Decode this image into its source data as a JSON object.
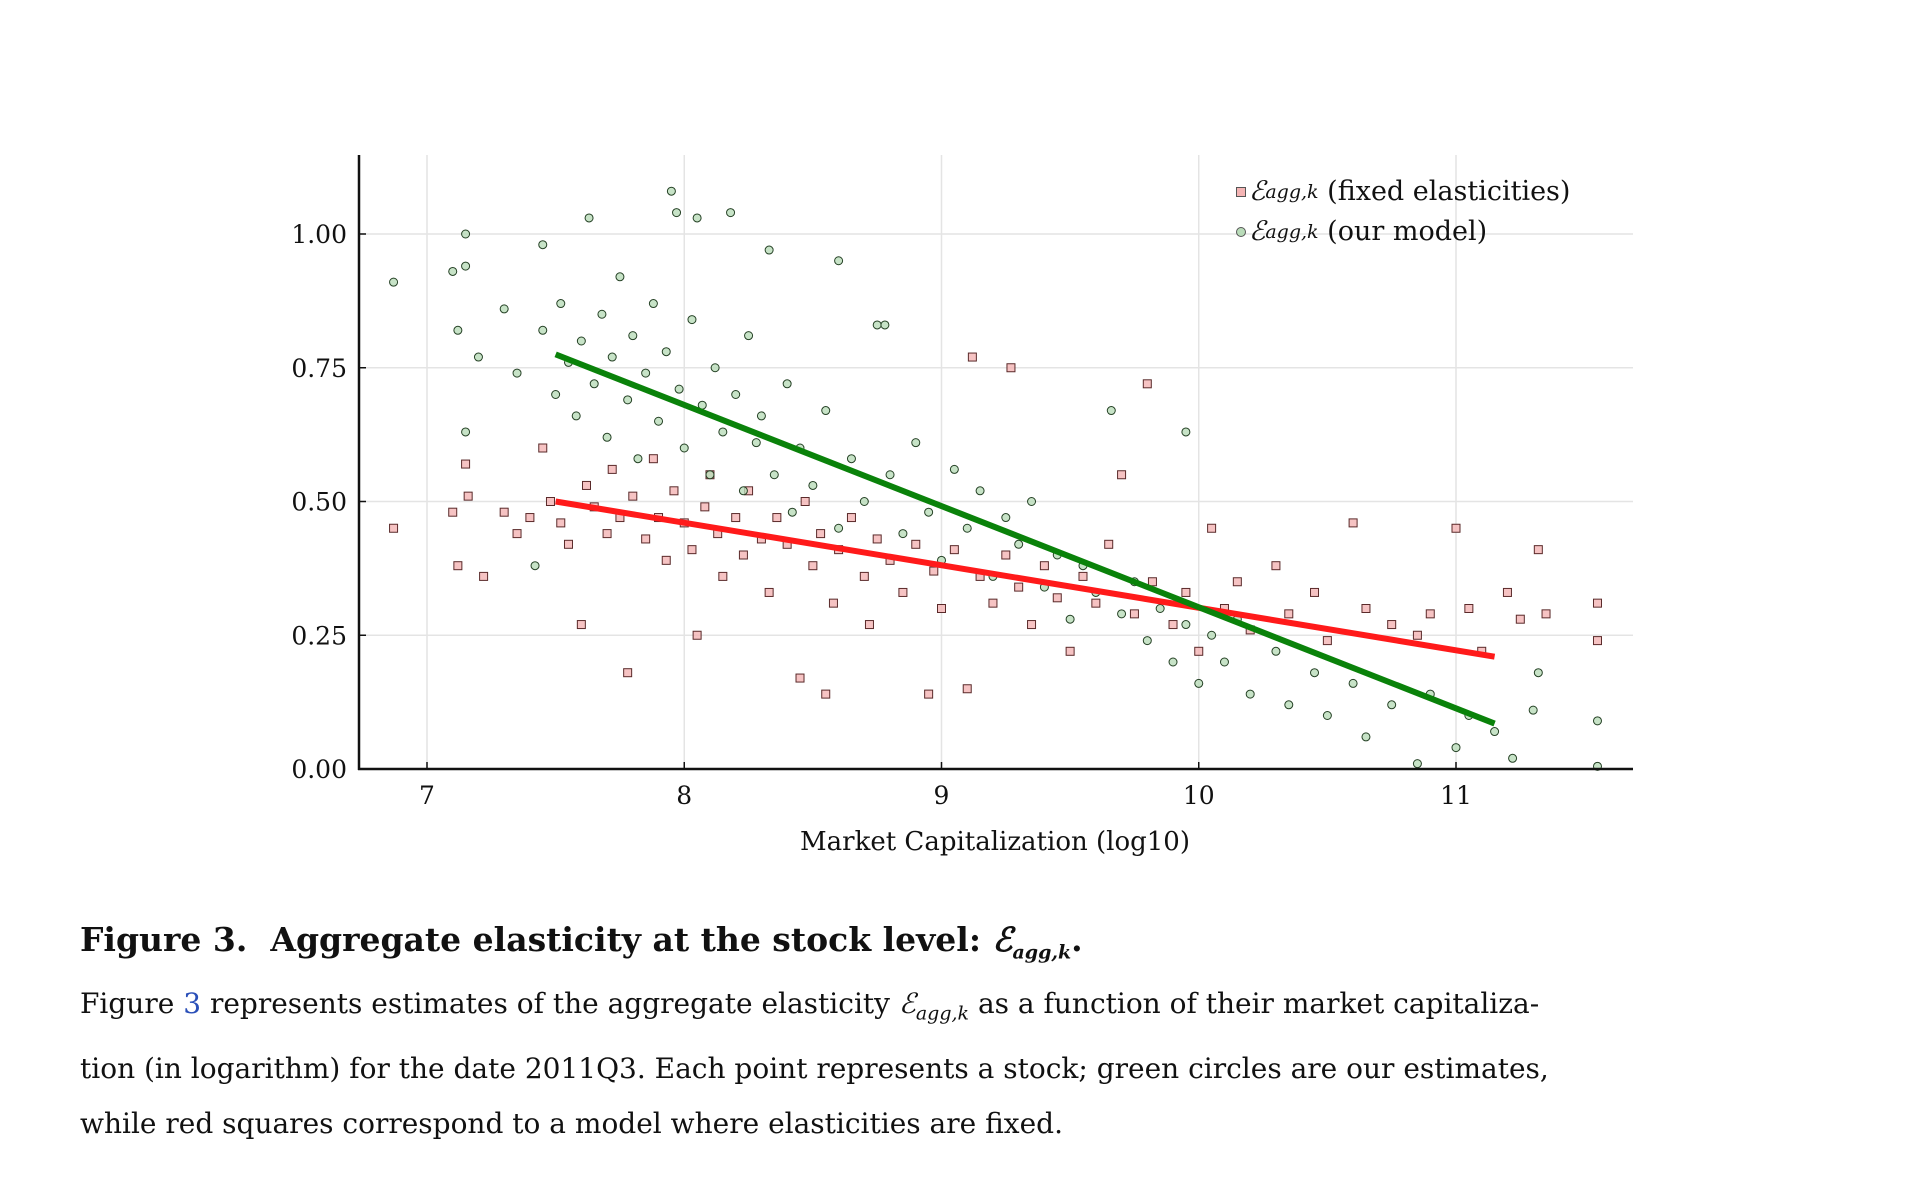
{
  "chart_data": {
    "type": "scatter",
    "xlabel": "Market Capitalization (log10)",
    "ylabel": "",
    "xlim": [
      6.75,
      11.7
    ],
    "ylim": [
      0.0,
      1.15
    ],
    "xticks": [
      "7",
      "8",
      "9",
      "10",
      "11"
    ],
    "yticks": [
      "0.00",
      "0.25",
      "0.50",
      "0.75",
      "1.00"
    ],
    "grid": true,
    "legend_position": "top-right",
    "series": [
      {
        "name": "fixed elasticities",
        "legend_symbol": "ℰ",
        "legend_sub": "agg,k",
        "legend_text": "(fixed elasticities)",
        "marker": "square",
        "color": "#f4b4b4",
        "fit_line": {
          "color": "#ff1a1a",
          "x": [
            7.5,
            11.15
          ],
          "y": [
            0.5,
            0.21
          ]
        },
        "points": [
          [
            6.87,
            0.45
          ],
          [
            7.1,
            0.48
          ],
          [
            7.15,
            0.57
          ],
          [
            7.22,
            0.36
          ],
          [
            7.12,
            0.38
          ],
          [
            7.16,
            0.51
          ],
          [
            7.3,
            0.48
          ],
          [
            7.35,
            0.44
          ],
          [
            7.4,
            0.47
          ],
          [
            7.45,
            0.6
          ],
          [
            7.48,
            0.5
          ],
          [
            7.52,
            0.46
          ],
          [
            7.55,
            0.42
          ],
          [
            7.6,
            0.27
          ],
          [
            7.62,
            0.53
          ],
          [
            7.65,
            0.49
          ],
          [
            7.7,
            0.44
          ],
          [
            7.72,
            0.56
          ],
          [
            7.75,
            0.47
          ],
          [
            7.78,
            0.18
          ],
          [
            7.8,
            0.51
          ],
          [
            7.85,
            0.43
          ],
          [
            7.88,
            0.58
          ],
          [
            7.9,
            0.47
          ],
          [
            7.93,
            0.39
          ],
          [
            7.96,
            0.52
          ],
          [
            8.0,
            0.46
          ],
          [
            8.03,
            0.41
          ],
          [
            8.05,
            0.25
          ],
          [
            8.08,
            0.49
          ],
          [
            8.1,
            0.55
          ],
          [
            8.13,
            0.44
          ],
          [
            8.15,
            0.36
          ],
          [
            8.2,
            0.47
          ],
          [
            8.23,
            0.4
          ],
          [
            8.25,
            0.52
          ],
          [
            8.3,
            0.43
          ],
          [
            8.33,
            0.33
          ],
          [
            8.36,
            0.47
          ],
          [
            8.4,
            0.42
          ],
          [
            8.45,
            0.17
          ],
          [
            8.47,
            0.5
          ],
          [
            8.5,
            0.38
          ],
          [
            8.53,
            0.44
          ],
          [
            8.55,
            0.14
          ],
          [
            8.58,
            0.31
          ],
          [
            8.6,
            0.41
          ],
          [
            8.65,
            0.47
          ],
          [
            8.7,
            0.36
          ],
          [
            8.72,
            0.27
          ],
          [
            8.75,
            0.43
          ],
          [
            8.8,
            0.39
          ],
          [
            8.85,
            0.33
          ],
          [
            8.9,
            0.42
          ],
          [
            8.95,
            0.14
          ],
          [
            8.97,
            0.37
          ],
          [
            9.0,
            0.3
          ],
          [
            9.05,
            0.41
          ],
          [
            9.1,
            0.15
          ],
          [
            9.12,
            0.77
          ],
          [
            9.15,
            0.36
          ],
          [
            9.2,
            0.31
          ],
          [
            9.25,
            0.4
          ],
          [
            9.27,
            0.75
          ],
          [
            9.3,
            0.34
          ],
          [
            9.35,
            0.27
          ],
          [
            9.4,
            0.38
          ],
          [
            9.45,
            0.32
          ],
          [
            9.5,
            0.22
          ],
          [
            9.55,
            0.36
          ],
          [
            9.6,
            0.31
          ],
          [
            9.65,
            0.42
          ],
          [
            9.7,
            0.55
          ],
          [
            9.75,
            0.29
          ],
          [
            9.8,
            0.72
          ],
          [
            9.82,
            0.35
          ],
          [
            9.9,
            0.27
          ],
          [
            9.95,
            0.33
          ],
          [
            10.0,
            0.22
          ],
          [
            10.05,
            0.45
          ],
          [
            10.1,
            0.3
          ],
          [
            10.15,
            0.35
          ],
          [
            10.2,
            0.26
          ],
          [
            10.3,
            0.38
          ],
          [
            10.35,
            0.29
          ],
          [
            10.45,
            0.33
          ],
          [
            10.5,
            0.24
          ],
          [
            10.6,
            0.46
          ],
          [
            10.65,
            0.3
          ],
          [
            10.75,
            0.27
          ],
          [
            10.85,
            0.25
          ],
          [
            10.9,
            0.29
          ],
          [
            11.0,
            0.45
          ],
          [
            11.05,
            0.3
          ],
          [
            11.1,
            0.22
          ],
          [
            11.2,
            0.33
          ],
          [
            11.25,
            0.28
          ],
          [
            11.32,
            0.41
          ],
          [
            11.35,
            0.29
          ],
          [
            11.55,
            0.31
          ],
          [
            11.55,
            0.24
          ]
        ]
      },
      {
        "name": "our model",
        "legend_symbol": "ℰ",
        "legend_sub": "agg,k",
        "legend_text": "(our model)",
        "marker": "circle",
        "color": "#b9dcb9",
        "fit_line": {
          "color": "#0a820a",
          "x": [
            7.5,
            11.15
          ],
          "y": [
            0.775,
            0.085
          ]
        },
        "points": [
          [
            6.87,
            0.91
          ],
          [
            7.1,
            0.93
          ],
          [
            7.15,
            1.0
          ],
          [
            7.15,
            0.94
          ],
          [
            7.15,
            0.63
          ],
          [
            7.2,
            0.77
          ],
          [
            7.12,
            0.82
          ],
          [
            7.3,
            0.86
          ],
          [
            7.35,
            0.74
          ],
          [
            7.42,
            0.38
          ],
          [
            7.45,
            0.98
          ],
          [
            7.45,
            0.82
          ],
          [
            7.5,
            0.7
          ],
          [
            7.52,
            0.87
          ],
          [
            7.55,
            0.76
          ],
          [
            7.58,
            0.66
          ],
          [
            7.6,
            0.8
          ],
          [
            7.63,
            1.03
          ],
          [
            7.65,
            0.72
          ],
          [
            7.68,
            0.85
          ],
          [
            7.7,
            0.62
          ],
          [
            7.72,
            0.77
          ],
          [
            7.75,
            0.92
          ],
          [
            7.78,
            0.69
          ],
          [
            7.8,
            0.81
          ],
          [
            7.82,
            0.58
          ],
          [
            7.85,
            0.74
          ],
          [
            7.88,
            0.87
          ],
          [
            7.9,
            0.65
          ],
          [
            7.93,
            0.78
          ],
          [
            7.95,
            1.08
          ],
          [
            7.97,
            1.04
          ],
          [
            7.98,
            0.71
          ],
          [
            8.0,
            0.6
          ],
          [
            8.03,
            0.84
          ],
          [
            8.05,
            1.03
          ],
          [
            8.07,
            0.68
          ],
          [
            8.1,
            0.55
          ],
          [
            8.12,
            0.75
          ],
          [
            8.15,
            0.63
          ],
          [
            8.18,
            1.04
          ],
          [
            8.2,
            0.7
          ],
          [
            8.23,
            0.52
          ],
          [
            8.25,
            0.81
          ],
          [
            8.28,
            0.61
          ],
          [
            8.3,
            0.66
          ],
          [
            8.33,
            0.97
          ],
          [
            8.35,
            0.55
          ],
          [
            8.4,
            0.72
          ],
          [
            8.42,
            0.48
          ],
          [
            8.45,
            0.6
          ],
          [
            8.5,
            0.53
          ],
          [
            8.55,
            0.67
          ],
          [
            8.6,
            0.95
          ],
          [
            8.6,
            0.45
          ],
          [
            8.65,
            0.58
          ],
          [
            8.7,
            0.5
          ],
          [
            8.75,
            0.83
          ],
          [
            8.78,
            0.83
          ],
          [
            8.8,
            0.55
          ],
          [
            8.85,
            0.44
          ],
          [
            8.9,
            0.61
          ],
          [
            8.95,
            0.48
          ],
          [
            9.0,
            0.39
          ],
          [
            9.05,
            0.56
          ],
          [
            9.1,
            0.45
          ],
          [
            9.15,
            0.52
          ],
          [
            9.2,
            0.36
          ],
          [
            9.25,
            0.47
          ],
          [
            9.3,
            0.42
          ],
          [
            9.35,
            0.5
          ],
          [
            9.4,
            0.34
          ],
          [
            9.45,
            0.4
          ],
          [
            9.5,
            0.28
          ],
          [
            9.55,
            0.38
          ],
          [
            9.6,
            0.33
          ],
          [
            9.66,
            0.67
          ],
          [
            9.7,
            0.29
          ],
          [
            9.75,
            0.35
          ],
          [
            9.8,
            0.24
          ],
          [
            9.85,
            0.3
          ],
          [
            9.9,
            0.2
          ],
          [
            9.95,
            0.63
          ],
          [
            9.95,
            0.27
          ],
          [
            10.0,
            0.16
          ],
          [
            10.05,
            0.25
          ],
          [
            10.1,
            0.2
          ],
          [
            10.15,
            0.28
          ],
          [
            10.2,
            0.14
          ],
          [
            10.3,
            0.22
          ],
          [
            10.35,
            0.12
          ],
          [
            10.45,
            0.18
          ],
          [
            10.5,
            0.1
          ],
          [
            10.6,
            0.16
          ],
          [
            10.65,
            0.06
          ],
          [
            10.75,
            0.12
          ],
          [
            10.85,
            0.01
          ],
          [
            10.9,
            0.14
          ],
          [
            11.0,
            0.04
          ],
          [
            11.05,
            0.1
          ],
          [
            11.15,
            0.07
          ],
          [
            11.22,
            0.02
          ],
          [
            11.3,
            0.11
          ],
          [
            11.32,
            0.18
          ],
          [
            11.55,
            0.09
          ],
          [
            11.55,
            0.005
          ]
        ]
      }
    ]
  },
  "caption": {
    "title_prefix": "Figure 3.",
    "title_text": "Aggregate elasticity at the stock level:",
    "title_symbol": "ℰ",
    "title_sub": "agg,k",
    "title_end": ".",
    "body_1": "Figure",
    "body_ref": "3",
    "body_2": "represents estimates of the aggregate elasticity",
    "body_symbol": "ℰ",
    "body_sub": "agg,k",
    "body_3": "as a function of their market capitaliza-",
    "body_4": "tion (in logarithm) for the date 2011Q3. Each point represents a stock; green circles are our estimates,",
    "body_5": "while red squares correspond to a model where elasticities are fixed."
  }
}
